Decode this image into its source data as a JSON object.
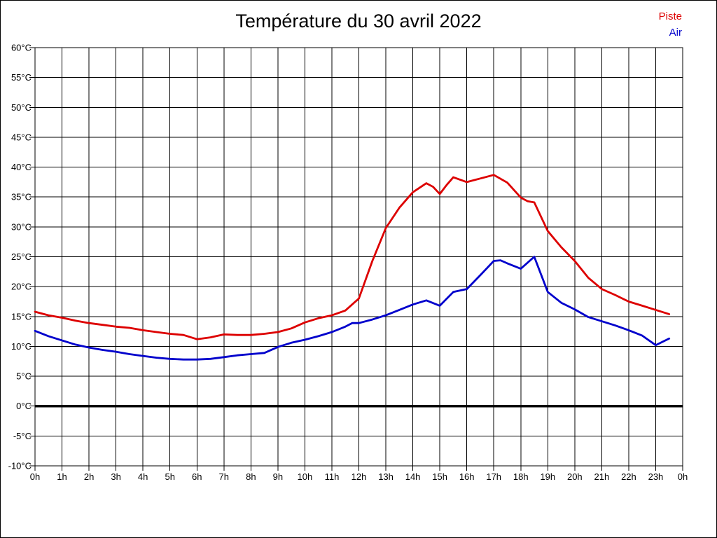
{
  "title": "Température du 30 avril 2022",
  "legend": [
    {
      "label": "Piste",
      "color": "#dd0000"
    },
    {
      "label": "Air",
      "color": "#0000cc"
    }
  ],
  "chart_data": {
    "type": "line",
    "title": "Température du 30 avril 2022",
    "xlabel": "",
    "ylabel": "",
    "xlim": [
      0,
      24
    ],
    "ylim": [
      -10,
      60
    ],
    "grid": true,
    "zero_line_at": 0,
    "legend_position": "top-right",
    "x_ticks": [
      0,
      1,
      2,
      3,
      4,
      5,
      6,
      7,
      8,
      9,
      10,
      11,
      12,
      13,
      14,
      15,
      16,
      17,
      18,
      19,
      20,
      21,
      22,
      23,
      24
    ],
    "x_tick_labels": [
      "0h",
      "1h",
      "2h",
      "3h",
      "4h",
      "5h",
      "6h",
      "7h",
      "8h",
      "9h",
      "10h",
      "11h",
      "12h",
      "13h",
      "14h",
      "15h",
      "16h",
      "17h",
      "18h",
      "19h",
      "20h",
      "21h",
      "22h",
      "23h",
      "0h"
    ],
    "y_ticks": [
      60,
      55,
      50,
      45,
      40,
      35,
      30,
      25,
      20,
      15,
      10,
      5,
      0,
      -5,
      -10
    ],
    "y_tick_labels": [
      "60°C",
      "55°C",
      "50°C",
      "45°C",
      "40°C",
      "35°C",
      "30°C",
      "25°C",
      "20°C",
      "15°C",
      "10°C",
      "5°C",
      "0°C",
      "-5°C",
      "-10°C"
    ],
    "y_unit": "°C",
    "x_unit": "h",
    "series": [
      {
        "name": "Piste",
        "color": "#dd0000",
        "points": [
          [
            0,
            15.8
          ],
          [
            0.5,
            15.2
          ],
          [
            1,
            14.8
          ],
          [
            1.5,
            14.3
          ],
          [
            2,
            13.9
          ],
          [
            2.5,
            13.6
          ],
          [
            3,
            13.3
          ],
          [
            3.5,
            13.1
          ],
          [
            4,
            12.7
          ],
          [
            4.5,
            12.4
          ],
          [
            5,
            12.1
          ],
          [
            5.5,
            11.9
          ],
          [
            6,
            11.2
          ],
          [
            6.5,
            11.5
          ],
          [
            7,
            12.0
          ],
          [
            7.5,
            11.9
          ],
          [
            8,
            11.9
          ],
          [
            8.5,
            12.1
          ],
          [
            9,
            12.4
          ],
          [
            9.5,
            13.0
          ],
          [
            10,
            14.0
          ],
          [
            10.5,
            14.7
          ],
          [
            11,
            15.2
          ],
          [
            11.5,
            16.0
          ],
          [
            12,
            18.0
          ],
          [
            12.5,
            24.3
          ],
          [
            13,
            29.8
          ],
          [
            13.5,
            33.2
          ],
          [
            14,
            35.8
          ],
          [
            14.5,
            37.3
          ],
          [
            14.75,
            36.7
          ],
          [
            15,
            35.5
          ],
          [
            15.25,
            37.0
          ],
          [
            15.5,
            38.3
          ],
          [
            16,
            37.5
          ],
          [
            16.5,
            38.1
          ],
          [
            17,
            38.7
          ],
          [
            17.5,
            37.4
          ],
          [
            18,
            34.9
          ],
          [
            18.25,
            34.3
          ],
          [
            18.5,
            34.1
          ],
          [
            19,
            29.3
          ],
          [
            19.5,
            26.6
          ],
          [
            20,
            24.3
          ],
          [
            20.5,
            21.5
          ],
          [
            21,
            19.6
          ],
          [
            21.5,
            18.6
          ],
          [
            22,
            17.5
          ],
          [
            22.5,
            16.8
          ],
          [
            23,
            16.1
          ],
          [
            23.5,
            15.4
          ]
        ]
      },
      {
        "name": "Air",
        "color": "#0000cc",
        "points": [
          [
            0,
            12.6
          ],
          [
            0.5,
            11.7
          ],
          [
            1,
            11.0
          ],
          [
            1.5,
            10.3
          ],
          [
            2,
            9.8
          ],
          [
            2.5,
            9.4
          ],
          [
            3,
            9.1
          ],
          [
            3.5,
            8.7
          ],
          [
            4,
            8.4
          ],
          [
            4.5,
            8.1
          ],
          [
            5,
            7.9
          ],
          [
            5.5,
            7.8
          ],
          [
            6,
            7.8
          ],
          [
            6.5,
            7.9
          ],
          [
            7,
            8.2
          ],
          [
            7.5,
            8.5
          ],
          [
            8,
            8.7
          ],
          [
            8.5,
            8.9
          ],
          [
            9,
            9.9
          ],
          [
            9.5,
            10.6
          ],
          [
            10,
            11.1
          ],
          [
            10.5,
            11.7
          ],
          [
            11,
            12.4
          ],
          [
            11.5,
            13.3
          ],
          [
            11.75,
            13.9
          ],
          [
            12,
            13.9
          ],
          [
            12.5,
            14.5
          ],
          [
            13,
            15.2
          ],
          [
            13.5,
            16.1
          ],
          [
            14,
            17.0
          ],
          [
            14.5,
            17.7
          ],
          [
            15,
            16.8
          ],
          [
            15.5,
            19.1
          ],
          [
            16,
            19.6
          ],
          [
            16.5,
            21.9
          ],
          [
            17,
            24.3
          ],
          [
            17.25,
            24.4
          ],
          [
            17.5,
            23.9
          ],
          [
            18,
            23.0
          ],
          [
            18.5,
            25.0
          ],
          [
            19,
            19.1
          ],
          [
            19.5,
            17.3
          ],
          [
            20,
            16.2
          ],
          [
            20.5,
            14.9
          ],
          [
            21,
            14.2
          ],
          [
            21.5,
            13.5
          ],
          [
            22,
            12.7
          ],
          [
            22.5,
            11.8
          ],
          [
            23,
            10.2
          ],
          [
            23.5,
            11.3
          ]
        ]
      }
    ]
  }
}
